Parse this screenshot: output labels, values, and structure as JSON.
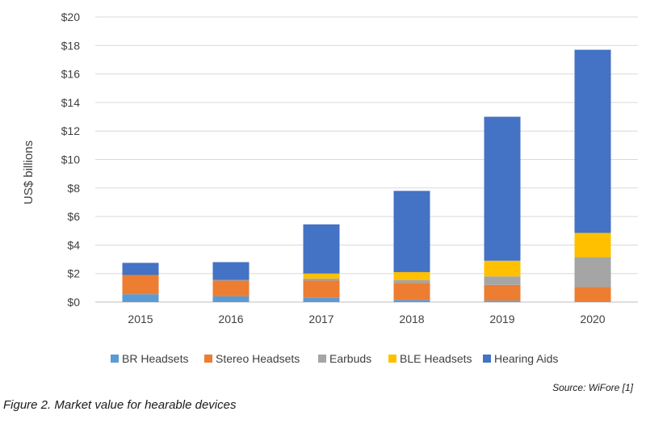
{
  "chart_data": {
    "type": "bar",
    "stacked": true,
    "categories": [
      "2015",
      "2016",
      "2017",
      "2018",
      "2019",
      "2020"
    ],
    "ylabel": "US$ billions",
    "xlabel": "",
    "ylim": [
      0,
      20
    ],
    "y_ticks": [
      "$0",
      "$2",
      "$4",
      "$6",
      "$8",
      "$10",
      "$12",
      "$14",
      "$16",
      "$18",
      "$20"
    ],
    "y_tick_values": [
      0,
      2,
      4,
      6,
      8,
      10,
      12,
      14,
      16,
      18,
      20
    ],
    "grid": true,
    "legend_position": "bottom",
    "series": [
      {
        "name": "BR Headsets",
        "color": "#5b9bd5",
        "values": [
          0.55,
          0.4,
          0.3,
          0.15,
          0.1,
          0.05
        ]
      },
      {
        "name": "Stereo Headsets",
        "color": "#ed7d31",
        "values": [
          1.35,
          1.1,
          1.2,
          1.2,
          1.1,
          1.0
        ]
      },
      {
        "name": "Earbuds",
        "color": "#a5a5a5",
        "values": [
          0.0,
          0.05,
          0.15,
          0.2,
          0.6,
          2.1
        ]
      },
      {
        "name": "BLE Headsets",
        "color": "#ffc000",
        "values": [
          0.0,
          0.0,
          0.35,
          0.55,
          1.1,
          1.7
        ]
      },
      {
        "name": "Hearing Aids",
        "color": "#4472c4",
        "values": [
          0.85,
          1.25,
          3.45,
          5.7,
          10.1,
          12.85
        ]
      }
    ]
  },
  "source": "Source:  WiFore [1]",
  "caption": "Figure 2.  Market value for hearable devices"
}
